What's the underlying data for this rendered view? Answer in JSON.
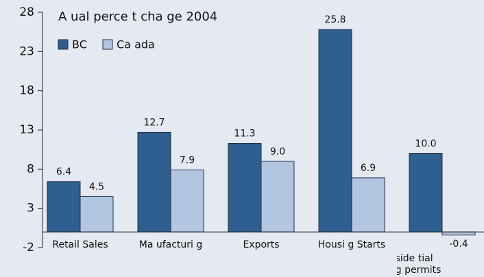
{
  "chart_data": {
    "type": "bar",
    "title": "A   ual perce  t cha  ge 2004",
    "categories": [
      "Retail Sales",
      "Ma  ufacturi  g",
      "Exports",
      "Housi  g Starts",
      "No  -reside  tial buildi  g permits"
    ],
    "series": [
      {
        "name": "BC",
        "color": "#2f5f90",
        "values": [
          6.4,
          12.7,
          11.3,
          25.8,
          10.0
        ],
        "value_labels": [
          "6.4",
          "12.7",
          "11.3",
          "25.8",
          "10.0"
        ]
      },
      {
        "name": "Ca  ada",
        "color": "#b3c6e1",
        "values": [
          4.5,
          7.9,
          9.0,
          6.9,
          -0.4
        ],
        "value_labels": [
          "4.5",
          "7.9",
          "9.0",
          "6.9",
          "-0.4"
        ]
      }
    ],
    "ylim": [
      -2,
      28
    ],
    "yticks": [
      -2,
      3,
      8,
      13,
      18,
      23,
      28
    ]
  }
}
